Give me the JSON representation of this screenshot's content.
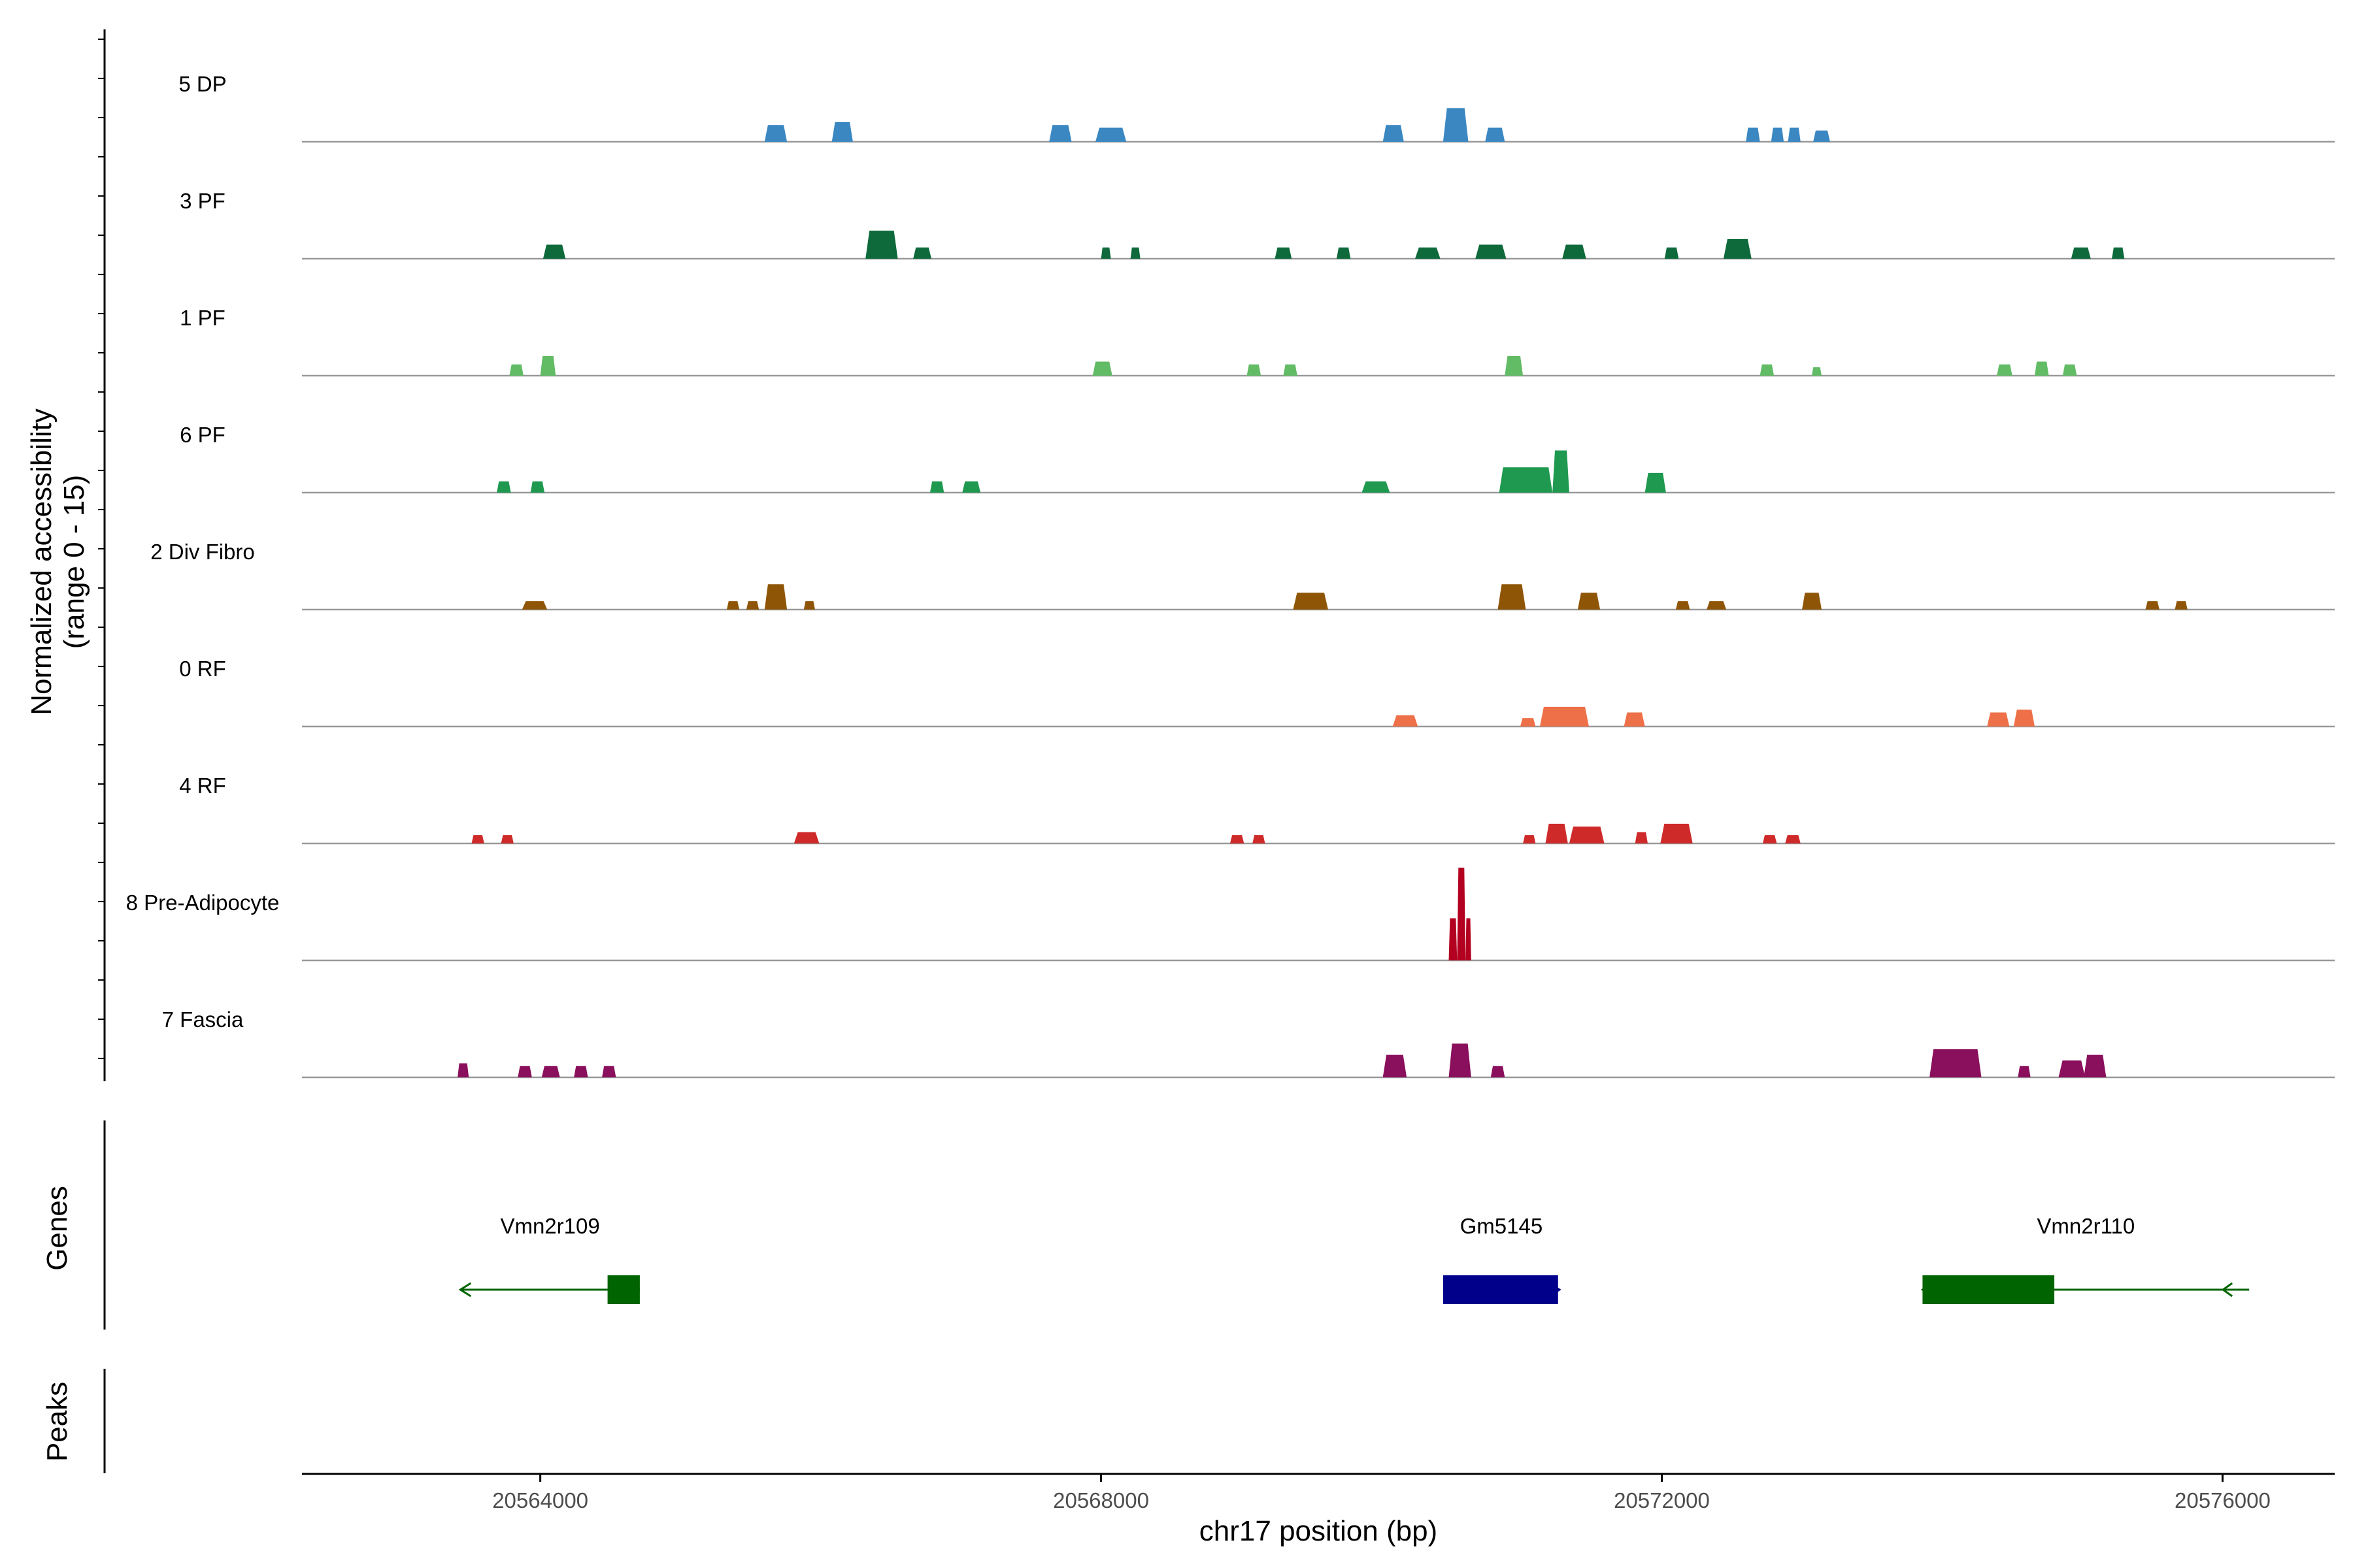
{
  "chart_data": {
    "type": "coverage",
    "x_range": [
      20562300,
      20576800
    ],
    "coverage": {
      "ylabel_line1": "Normalized accessibility",
      "ylabel_line2": "(range 0 - 15)",
      "ylim": [
        0,
        15
      ],
      "tracks": [
        {
          "name": "5 DP",
          "color": "#3a87c2",
          "peaks": [
            [
              20565600,
              20565760,
              6
            ],
            [
              20566080,
              20566230,
              7
            ],
            [
              20567630,
              20567790,
              6
            ],
            [
              20567960,
              20568180,
              5
            ],
            [
              20570010,
              20570160,
              6
            ],
            [
              20570440,
              20570620,
              12
            ],
            [
              20570740,
              20570880,
              5
            ],
            [
              20572600,
              20572700,
              5
            ],
            [
              20572780,
              20572870,
              5
            ],
            [
              20572900,
              20572990,
              5
            ],
            [
              20573080,
              20573200,
              4
            ]
          ]
        },
        {
          "name": "3 PF",
          "color": "#0e6a3a",
          "peaks": [
            [
              20564020,
              20564180,
              5
            ],
            [
              20566320,
              20566550,
              10
            ],
            [
              20566660,
              20566790,
              4
            ],
            [
              20568000,
              20568070,
              4
            ],
            [
              20568210,
              20568280,
              4
            ],
            [
              20569240,
              20569360,
              4
            ],
            [
              20569680,
              20569780,
              4
            ],
            [
              20570240,
              20570420,
              4
            ],
            [
              20570670,
              20570890,
              5
            ],
            [
              20571290,
              20571460,
              5
            ],
            [
              20572020,
              20572120,
              4
            ],
            [
              20572440,
              20572640,
              7
            ],
            [
              20574920,
              20575060,
              4
            ],
            [
              20575210,
              20575300,
              4
            ]
          ]
        },
        {
          "name": "1 PF",
          "color": "#62bb65",
          "peaks": [
            [
              20563780,
              20563880,
              4
            ],
            [
              20564000,
              20564110,
              7
            ],
            [
              20567940,
              20568080,
              5
            ],
            [
              20569040,
              20569140,
              4
            ],
            [
              20569300,
              20569400,
              4
            ],
            [
              20570880,
              20571010,
              7
            ],
            [
              20572700,
              20572800,
              4
            ],
            [
              20573070,
              20573140,
              3
            ],
            [
              20574390,
              20574500,
              4
            ],
            [
              20574660,
              20574760,
              5
            ],
            [
              20574860,
              20574960,
              4
            ]
          ]
        },
        {
          "name": "6 PF",
          "color": "#1f9950",
          "peaks": [
            [
              20563690,
              20563790,
              4
            ],
            [
              20563930,
              20564030,
              4
            ],
            [
              20566780,
              20566880,
              4
            ],
            [
              20567010,
              20567140,
              4
            ],
            [
              20569860,
              20570060,
              4
            ],
            [
              20570840,
              20571220,
              9
            ],
            [
              20571220,
              20571340,
              15
            ],
            [
              20571880,
              20572030,
              7
            ]
          ]
        },
        {
          "name": "2 Div Fibro",
          "color": "#8f5506",
          "peaks": [
            [
              20563870,
              20564050,
              3
            ],
            [
              20565330,
              20565420,
              3
            ],
            [
              20565470,
              20565560,
              3
            ],
            [
              20565600,
              20565760,
              9
            ],
            [
              20565880,
              20565960,
              3
            ],
            [
              20569370,
              20569620,
              6
            ],
            [
              20570830,
              20571030,
              9
            ],
            [
              20571400,
              20571560,
              6
            ],
            [
              20572100,
              20572200,
              3
            ],
            [
              20572320,
              20572460,
              3
            ],
            [
              20573000,
              20573140,
              6
            ],
            [
              20575450,
              20575550,
              3
            ],
            [
              20575660,
              20575750,
              3
            ]
          ]
        },
        {
          "name": "0 RF",
          "color": "#ee7048",
          "peaks": [
            [
              20570080,
              20570260,
              4
            ],
            [
              20570990,
              20571100,
              3
            ],
            [
              20571130,
              20571480,
              7
            ],
            [
              20571730,
              20571880,
              5
            ],
            [
              20574320,
              20574480,
              5
            ],
            [
              20574510,
              20574660,
              6
            ]
          ]
        },
        {
          "name": "4 RF",
          "color": "#cf2a2a",
          "peaks": [
            [
              20563510,
              20563600,
              3
            ],
            [
              20563720,
              20563810,
              3
            ],
            [
              20565810,
              20565990,
              4
            ],
            [
              20568920,
              20569020,
              3
            ],
            [
              20569080,
              20569170,
              3
            ],
            [
              20571010,
              20571100,
              3
            ],
            [
              20571170,
              20571330,
              7
            ],
            [
              20571340,
              20571590,
              6
            ],
            [
              20571810,
              20571900,
              4
            ],
            [
              20571990,
              20572220,
              7
            ],
            [
              20572720,
              20572820,
              3
            ],
            [
              20572880,
              20572990,
              3
            ]
          ]
        },
        {
          "name": "8 Pre-Adipocyte",
          "color": "#b30020",
          "peaks": [
            [
              20570480,
              20570540,
              15
            ],
            [
              20570540,
              20570600,
              33
            ],
            [
              20570600,
              20570640,
              15
            ]
          ]
        },
        {
          "name": "7 Fascia",
          "color": "#8a0f5c",
          "peaks": [
            [
              20563410,
              20563490,
              5
            ],
            [
              20563840,
              20563940,
              4
            ],
            [
              20564010,
              20564140,
              4
            ],
            [
              20564240,
              20564340,
              4
            ],
            [
              20564440,
              20564540,
              4
            ],
            [
              20570010,
              20570180,
              8
            ],
            [
              20570480,
              20570640,
              12
            ],
            [
              20570780,
              20570880,
              4
            ],
            [
              20573910,
              20574280,
              10
            ],
            [
              20574540,
              20574630,
              4
            ],
            [
              20574830,
              20575020,
              6
            ],
            [
              20575010,
              20575170,
              8
            ]
          ]
        }
      ]
    },
    "genes": {
      "ylabel": "Genes",
      "items": [
        {
          "name": "Vmn2r109",
          "color": "#006400",
          "strand": "-",
          "start": 20563430,
          "end": 20564710,
          "exons": [
            [
              20564480,
              20564710
            ]
          ]
        },
        {
          "name": "Gm5145",
          "color": "#00008b",
          "strand": "+",
          "start": 20570440,
          "end": 20571270,
          "exons": [
            [
              20570440,
              20571260
            ]
          ]
        },
        {
          "name": "Vmn2r110",
          "color": "#006400",
          "strand": "-",
          "start": 20573860,
          "end": 20576190,
          "exons": [
            [
              20573860,
              20574800
            ]
          ]
        }
      ]
    },
    "peaks_track": {
      "ylabel": "Peaks",
      "items": []
    },
    "x_axis": {
      "label": "chr17 position (bp)",
      "ticks": [
        20564000,
        20568000,
        20572000,
        20576000
      ],
      "tick_labels": [
        "20564000",
        "20568000",
        "20572000",
        "20576000"
      ]
    }
  }
}
